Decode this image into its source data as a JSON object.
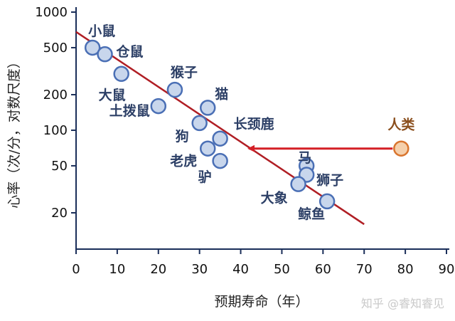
{
  "chart_data": {
    "type": "scatter",
    "xlabel": "预期寿命（年）",
    "ylabel": "心率（次/分，对数尺度）",
    "x_ticks": [
      0,
      10,
      20,
      30,
      40,
      50,
      60,
      70,
      80,
      90
    ],
    "y_ticks": [
      20,
      50,
      100,
      200,
      500,
      1000
    ],
    "xlim": [
      0,
      90
    ],
    "ylim": [
      10,
      1000
    ],
    "y_scale": "log",
    "grid": false,
    "points": [
      {
        "name": "小鼠",
        "x": 4,
        "y": 500
      },
      {
        "name": "仓鼠",
        "x": 7,
        "y": 440
      },
      {
        "name": "大鼠",
        "x": 11,
        "y": 300
      },
      {
        "name": "猴子",
        "x": 24,
        "y": 220
      },
      {
        "name": "土拨鼠",
        "x": 20,
        "y": 160
      },
      {
        "name": "猫",
        "x": 32,
        "y": 155
      },
      {
        "name": "狗",
        "x": 30,
        "y": 115
      },
      {
        "name": "长颈鹿",
        "x": 35,
        "y": 85
      },
      {
        "name": "老虎",
        "x": 32,
        "y": 70
      },
      {
        "name": "驴",
        "x": 35,
        "y": 55
      },
      {
        "name": "马",
        "x": 56,
        "y": 50
      },
      {
        "name": "狮子",
        "x": 56,
        "y": 42
      },
      {
        "name": "大象",
        "x": 54,
        "y": 35
      },
      {
        "name": "鲸鱼",
        "x": 61,
        "y": 25
      }
    ],
    "highlight": {
      "name": "人类",
      "x": 79,
      "y": 70
    },
    "trendline": {
      "start": [
        0,
        680
      ],
      "end": [
        70,
        16
      ]
    },
    "arrow": {
      "from": [
        79,
        70
      ],
      "to": [
        42,
        70
      ]
    },
    "colors": {
      "point_fill": "#c8d6ec",
      "point_stroke": "#4a6fb5",
      "highlight_fill": "#f5d0ac",
      "highlight_stroke": "#d9752e",
      "trendline": "#b01e24",
      "arrow": "#d41f26",
      "axis": "#1a2e59"
    }
  },
  "watermark": "知乎 @睿知睿见"
}
